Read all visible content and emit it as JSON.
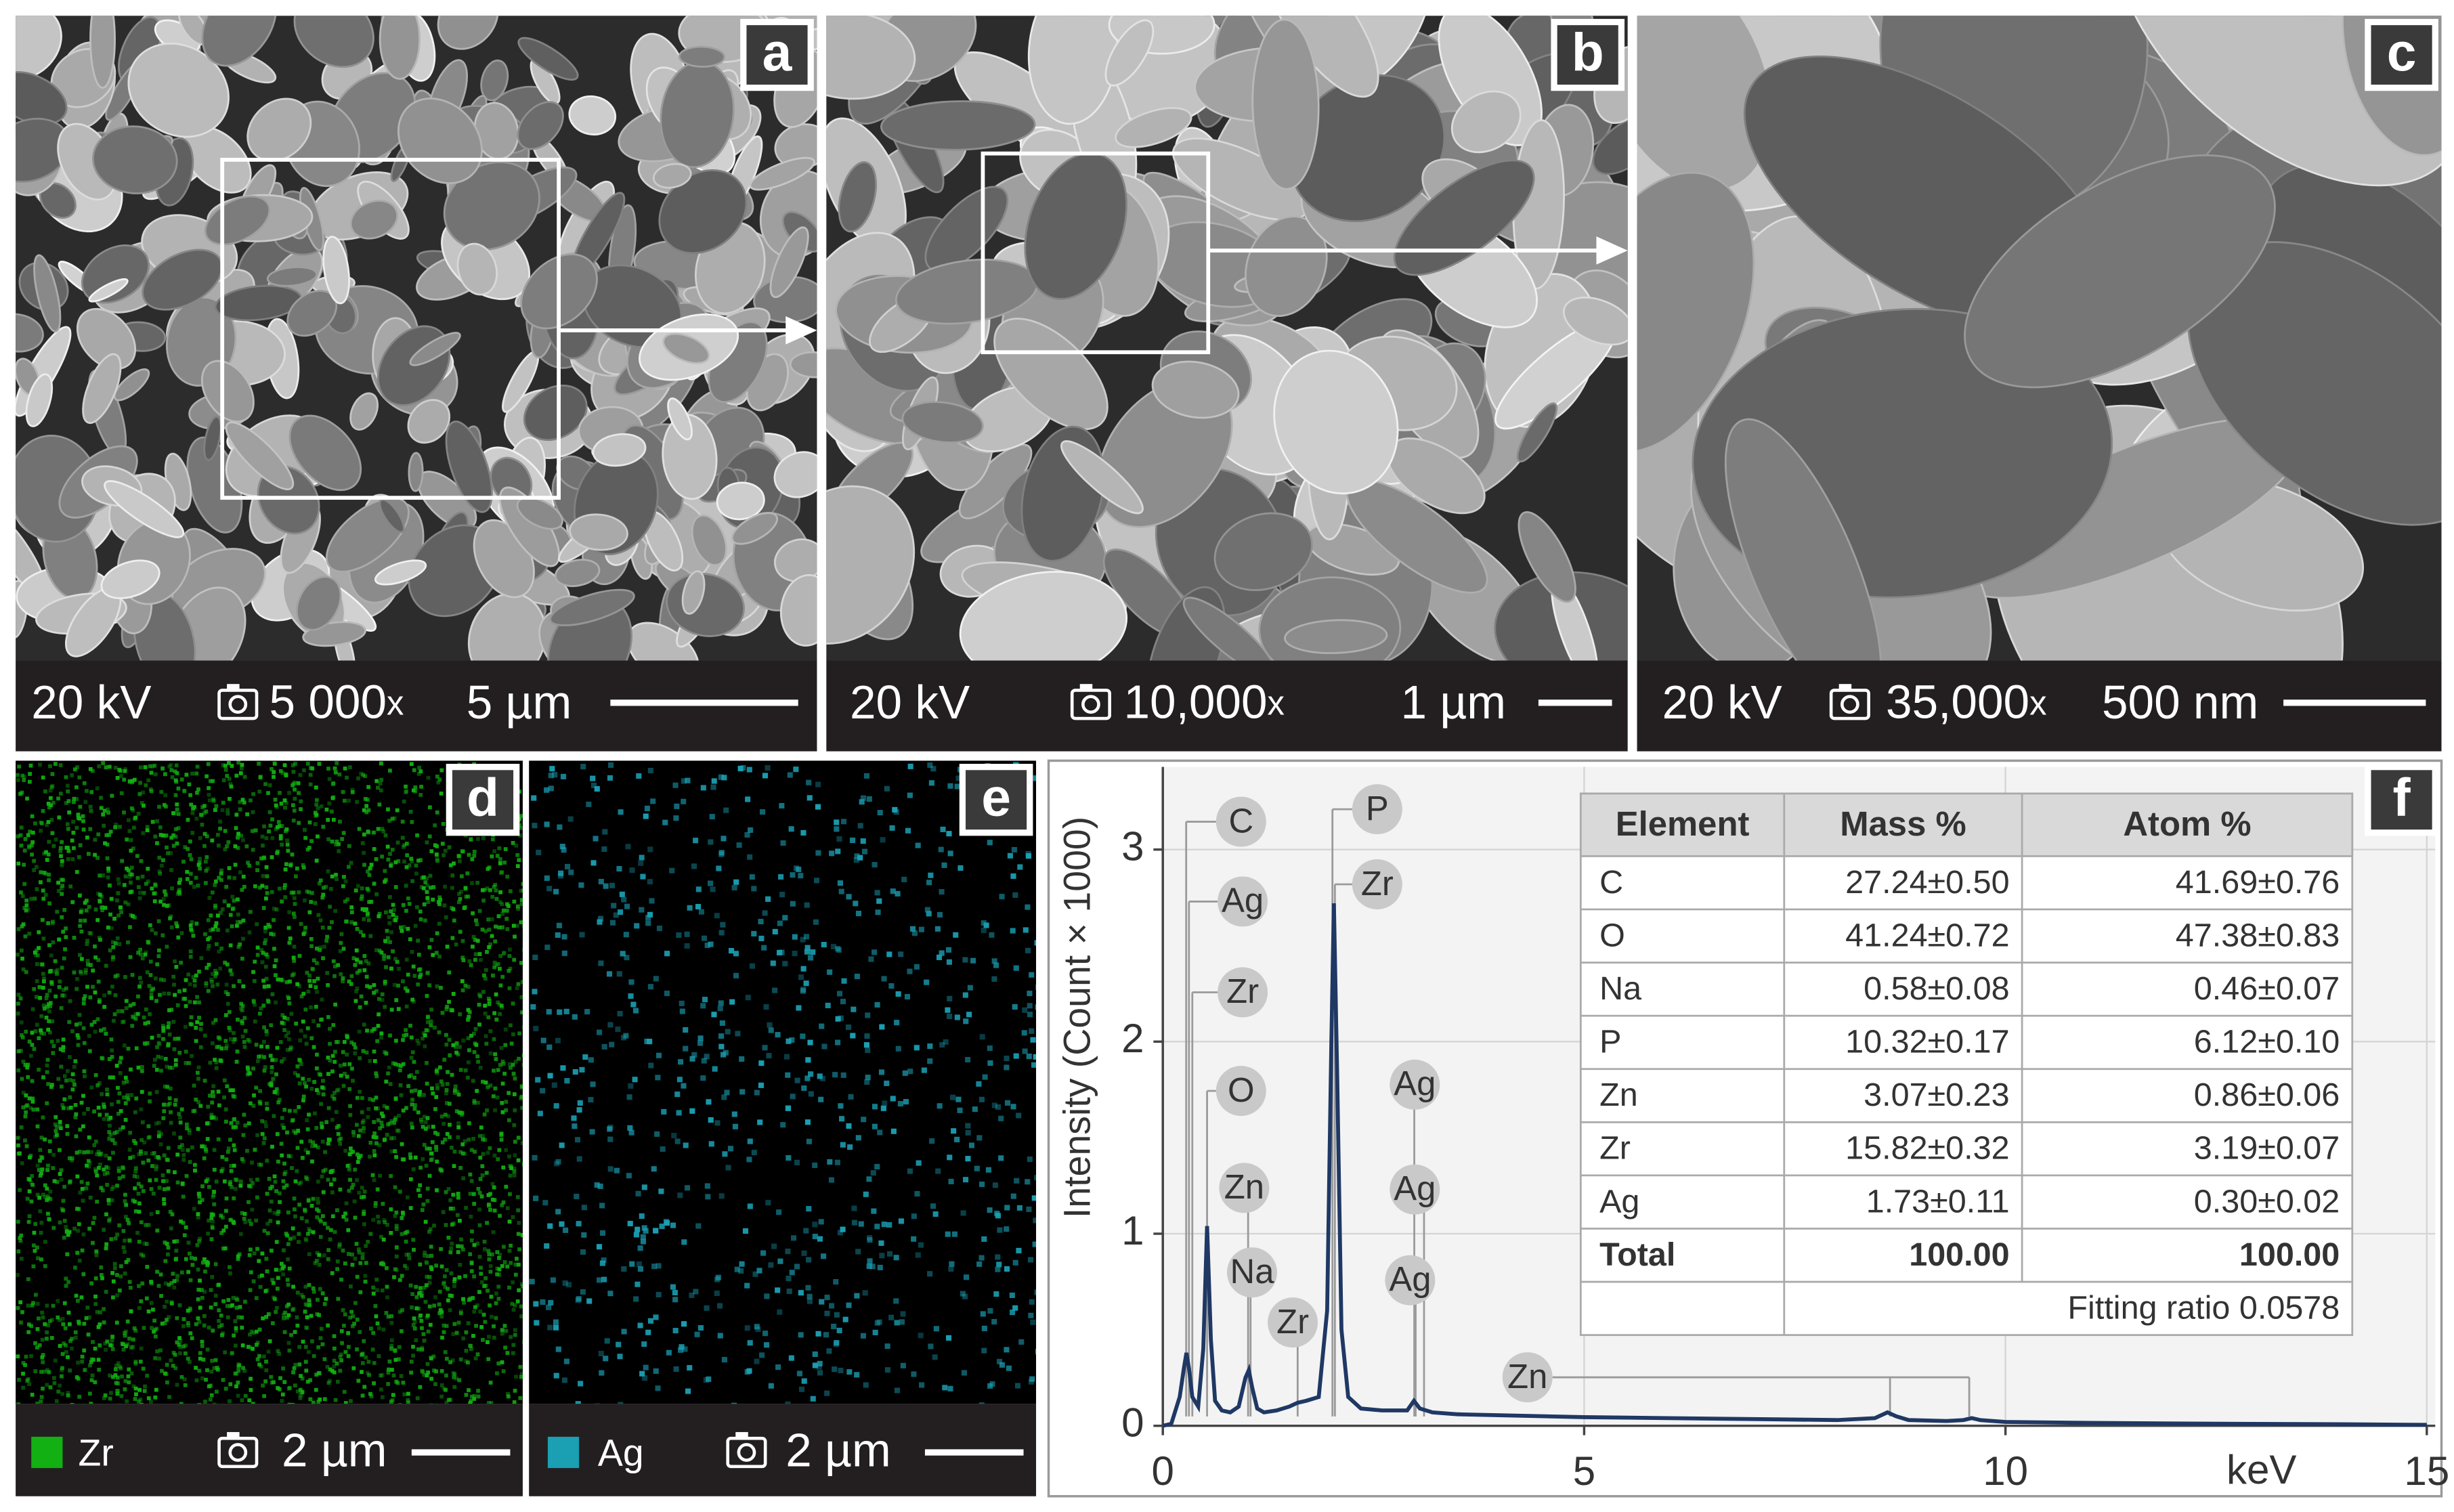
{
  "panels": [
    {
      "label": "a",
      "voltage": "20 kV",
      "magnification": "5 000",
      "mag_unit": "x",
      "scale": "5 µm"
    },
    {
      "label": "b",
      "voltage": "20 kV",
      "magnification": "10,000",
      "mag_unit": "x",
      "scale": "1 µm"
    },
    {
      "label": "c",
      "voltage": "20 kV",
      "magnification": "35,000",
      "mag_unit": "x",
      "scale": "500 nm"
    },
    {
      "label": "d",
      "element": "Zr",
      "color": "#12b012",
      "scale": "2 µm"
    },
    {
      "label": "e",
      "element": "Ag",
      "color": "#1a9fb3",
      "scale": "2 µm"
    },
    {
      "label": "f"
    }
  ],
  "chart_data": {
    "type": "line",
    "y_label": "Intensity (Count × 1000)",
    "x_unit_label": "keV",
    "x": [
      0,
      0.1,
      0.2,
      0.25,
      0.28,
      0.31,
      0.35,
      0.42,
      0.48,
      0.525,
      0.57,
      0.62,
      0.7,
      0.8,
      0.9,
      0.98,
      1.02,
      1.06,
      1.12,
      1.2,
      1.35,
      1.5,
      1.6,
      1.7,
      1.85,
      1.95,
      2.0,
      2.03,
      2.07,
      2.12,
      2.2,
      2.35,
      2.6,
      2.9,
      2.98,
      3.05,
      3.2,
      3.5,
      4,
      5,
      6,
      7,
      8,
      8.45,
      8.6,
      8.7,
      8.85,
      9.3,
      9.5,
      9.6,
      9.7,
      10,
      11,
      12,
      13,
      14,
      15
    ],
    "series": [
      {
        "color": "#1f3864",
        "values": [
          0,
          0.01,
          0.15,
          0.3,
          0.38,
          0.3,
          0.15,
          0.1,
          0.4,
          1.04,
          0.45,
          0.13,
          0.08,
          0.07,
          0.1,
          0.25,
          0.29,
          0.2,
          0.09,
          0.07,
          0.08,
          0.1,
          0.12,
          0.13,
          0.15,
          0.6,
          2.0,
          2.72,
          1.8,
          0.5,
          0.15,
          0.09,
          0.08,
          0.08,
          0.13,
          0.09,
          0.07,
          0.06,
          0.055,
          0.045,
          0.04,
          0.035,
          0.03,
          0.04,
          0.07,
          0.05,
          0.03,
          0.025,
          0.03,
          0.04,
          0.03,
          0.02,
          0.015,
          0.012,
          0.01,
          0.008,
          0.005
        ]
      }
    ],
    "xlim": [
      0,
      15.1
    ],
    "ylim": [
      0,
      3.43
    ],
    "xticks": [
      0,
      5,
      10,
      15
    ],
    "yticks": [
      0,
      1,
      2,
      3
    ],
    "grid": true,
    "annotations": [
      {
        "text": "C",
        "x": 0.277
      },
      {
        "text": "Ag",
        "x": 0.31
      },
      {
        "text": "Zr",
        "x": 0.35
      },
      {
        "text": "O",
        "x": 0.525
      },
      {
        "text": "Zn",
        "x": 1.012
      },
      {
        "text": "Na",
        "x": 1.041
      },
      {
        "text": "Zr",
        "x": 1.6
      },
      {
        "text": "P",
        "x": 2.013
      },
      {
        "text": "Zr",
        "x": 2.042
      },
      {
        "text": "Ag",
        "x": 2.984
      },
      {
        "text": "Ag",
        "x": 3.1
      },
      {
        "text": "Ag",
        "x": 3.0
      },
      {
        "text": "Zn",
        "x": [
          8.63,
          9.57
        ]
      }
    ],
    "table": {
      "header": [
        "Element",
        "Mass %",
        "Atom %"
      ],
      "rows": [
        [
          "C",
          "27.24±0.50",
          "41.69±0.76"
        ],
        [
          "O",
          "41.24±0.72",
          "47.38±0.83"
        ],
        [
          "Na",
          "0.58±0.08",
          "0.46±0.07"
        ],
        [
          "P",
          "10.32±0.17",
          "6.12±0.10"
        ],
        [
          "Zn",
          "3.07±0.23",
          "0.86±0.06"
        ],
        [
          "Zr",
          "15.82±0.32",
          "3.19±0.07"
        ],
        [
          "Ag",
          "1.73±0.11",
          "0.30±0.02"
        ],
        [
          "Total",
          "100.00",
          "100.00"
        ]
      ],
      "footnote": "Fitting ratio 0.0578"
    }
  }
}
